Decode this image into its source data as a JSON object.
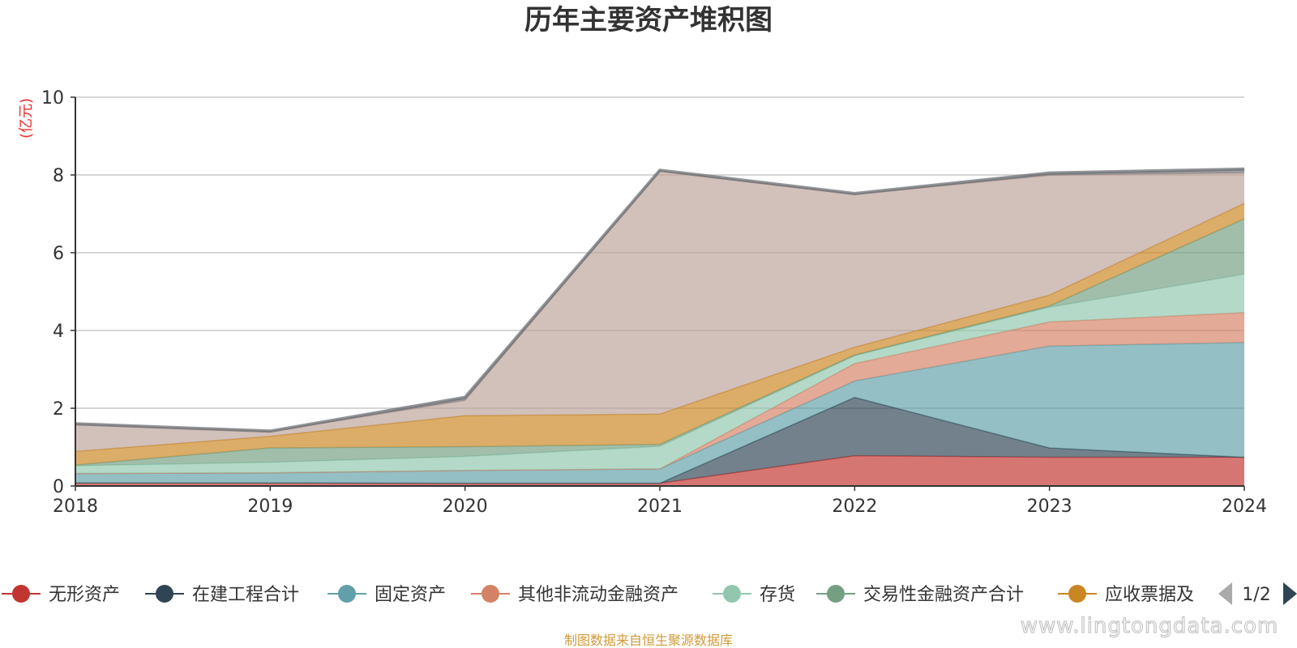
{
  "chart_data": {
    "type": "area",
    "stacked": true,
    "title": "历年主要资产堆积图",
    "unit_label": "(亿元)",
    "ylim": [
      0,
      10
    ],
    "y_ticks": [
      "0",
      "2",
      "4",
      "6",
      "8",
      "10"
    ],
    "grid": true,
    "categories": [
      "2018",
      "2019",
      "2020",
      "2021",
      "2022",
      "2023",
      "2024"
    ],
    "series": [
      {
        "name": "无形资产",
        "color": "#c23531",
        "values": [
          0.08,
          0.08,
          0.07,
          0.07,
          0.78,
          0.74,
          0.74
        ]
      },
      {
        "name": "在建工程合计",
        "color": "#2f4554",
        "values": [
          0,
          0,
          0,
          0,
          1.5,
          0.24,
          0
        ]
      },
      {
        "name": "固定资产",
        "color": "#61a0a8",
        "values": [
          0.24,
          0.26,
          0.33,
          0.37,
          0.42,
          2.62,
          2.95
        ]
      },
      {
        "name": "其他非流动金融资产",
        "color": "#d48265",
        "values": [
          0,
          0,
          0,
          0,
          0.45,
          0.62,
          0.77
        ]
      },
      {
        "name": "存货",
        "color": "#91c7ae",
        "values": [
          0.2,
          0.27,
          0.36,
          0.58,
          0.2,
          0.38,
          0.99
        ]
      },
      {
        "name": "交易性金融资产合计",
        "color": "#749f83",
        "values": [
          0.02,
          0.37,
          0.25,
          0.05,
          0.02,
          0.03,
          1.42
        ]
      },
      {
        "name": "应收票据及",
        "color": "#ca8622",
        "values": [
          0.35,
          0.3,
          0.8,
          0.78,
          0.2,
          0.28,
          0.4
        ]
      },
      {
        "name": "",
        "color": "#bda29a",
        "values": [
          0.7,
          0.12,
          0.39,
          6.25,
          3.93,
          3.08,
          0.78
        ]
      },
      {
        "name": "",
        "color": "#6e7074",
        "values": [
          0.01,
          0.01,
          0.08,
          0.02,
          0.02,
          0.06,
          0.1
        ]
      }
    ],
    "legend": {
      "position": "bottom",
      "visible_items": [
        "无形资产",
        "在建工程合计",
        "固定资产",
        "其他非流动金融资产",
        "存货",
        "交易性金融资产合计",
        "应收票据及"
      ],
      "page": "1/2"
    },
    "source_note": "制图数据来自恒生聚源数据库",
    "watermark": "www.lingtongdata.com"
  }
}
